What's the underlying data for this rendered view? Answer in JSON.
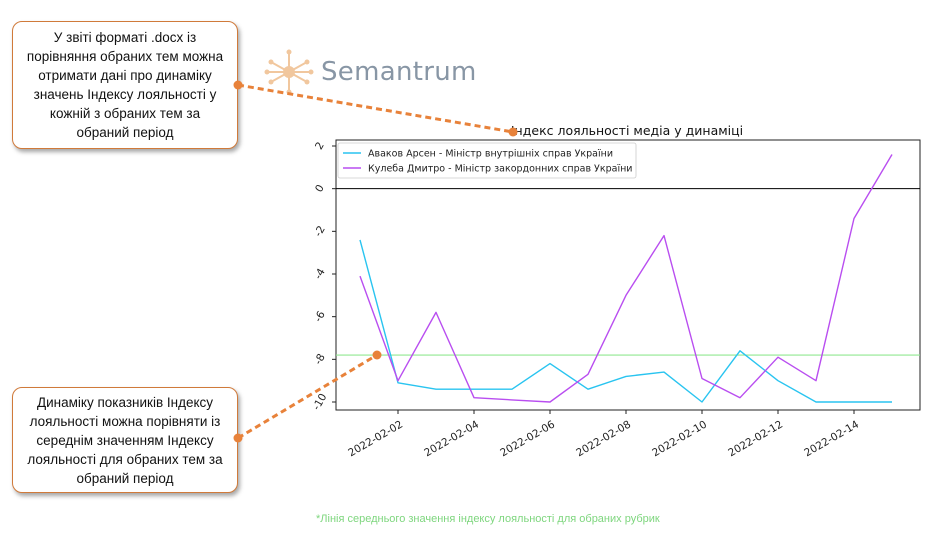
{
  "brand": {
    "name": "Semantrum",
    "logo_icon": "network-star-icon",
    "color": "#8896a5"
  },
  "callouts": {
    "top": "У звіті форматі .docx із порівняння обраних тем можна отримати дані про динаміку значень Індексу лояльності у кожній з обраних тем за обраний період",
    "bottom": "Динаміку показників Індексу лояльності можна порівняти із середнім значенням Індексу лояльності для обраних тем за обраний період",
    "accent": "#e8823a"
  },
  "footnote": "*Лінія середнього значення індексу лояльності для обраних рубрик",
  "chart_data": {
    "type": "line",
    "title": "Індекс лояльності медіа у динаміці",
    "xlabel": "",
    "ylabel": "",
    "x": [
      "2022-02-01",
      "2022-02-02",
      "2022-02-03",
      "2022-02-04",
      "2022-02-05",
      "2022-02-06",
      "2022-02-07",
      "2022-02-08",
      "2022-02-09",
      "2022-02-10",
      "2022-02-11",
      "2022-02-12",
      "2022-02-13",
      "2022-02-14",
      "2022-02-15"
    ],
    "xticks": [
      "2022-02-02",
      "2022-02-04",
      "2022-02-06",
      "2022-02-08",
      "2022-02-10",
      "2022-02-12",
      "2022-02-14"
    ],
    "yticks": [
      "2",
      "0",
      "-2",
      "-4",
      "-6",
      "-8",
      "-10"
    ],
    "ylim": [
      -10.4,
      2.1
    ],
    "series": [
      {
        "name": "Аваков Арсен - Міністр внутрішніх справ України",
        "color": "#29c4f0",
        "values": [
          -2.4,
          -9.1,
          -9.4,
          -9.4,
          -9.4,
          -8.2,
          -9.4,
          -8.8,
          -8.6,
          -10.0,
          -7.6,
          -9.0,
          -10.0,
          -10.0,
          -10.0
        ]
      },
      {
        "name": "Кулеба Дмитро - Міністр закордонних справ України",
        "color": "#b94ef0",
        "values": [
          -4.1,
          -9.0,
          -5.8,
          -9.8,
          -9.9,
          -10.0,
          -8.7,
          -5.0,
          -2.2,
          -8.9,
          -9.8,
          -7.9,
          -9.0,
          -1.4,
          1.6
        ]
      }
    ],
    "reference_lines": [
      {
        "label": "0",
        "value": 0,
        "color": "#000000"
      },
      {
        "label": "mean",
        "value": -7.8,
        "color": "#90e890"
      }
    ],
    "legend_position": "top-left",
    "grid": false
  }
}
